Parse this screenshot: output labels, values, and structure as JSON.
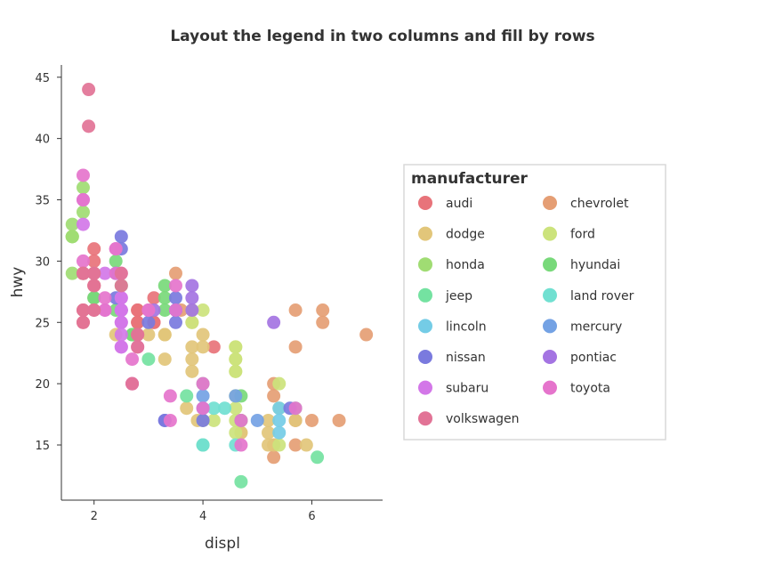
{
  "chart_data": {
    "type": "scatter",
    "title": "Layout the legend in two columns and fill by rows",
    "xlabel": "displ",
    "ylabel": "hwy",
    "xlim": [
      1.4,
      7.3
    ],
    "ylim": [
      10.5,
      46
    ],
    "xticks": [
      2,
      4,
      6
    ],
    "yticks": [
      15,
      20,
      25,
      30,
      35,
      40,
      45
    ],
    "grid": false,
    "legend": {
      "title": "manufacturer",
      "placement": "right",
      "columns": 2,
      "fill": "rows"
    },
    "series": [
      {
        "name": "audi",
        "color": "#e8737a",
        "points": [
          [
            1.8,
            29
          ],
          [
            1.8,
            29
          ],
          [
            2,
            31
          ],
          [
            2,
            30
          ],
          [
            2.8,
            26
          ],
          [
            2.8,
            26
          ],
          [
            3.1,
            27
          ],
          [
            1.8,
            26
          ],
          [
            1.8,
            25
          ],
          [
            2,
            28
          ],
          [
            2,
            27
          ],
          [
            2.8,
            25
          ],
          [
            2.8,
            25
          ],
          [
            3.1,
            25
          ],
          [
            3.1,
            25
          ],
          [
            4.2,
            23
          ],
          [
            1.8,
            29
          ],
          [
            2,
            28
          ]
        ]
      },
      {
        "name": "chevrolet",
        "color": "#e59e74",
        "points": [
          [
            5.7,
            26
          ],
          [
            5.7,
            23
          ],
          [
            6.2,
            26
          ],
          [
            6.2,
            25
          ],
          [
            7,
            24
          ],
          [
            5.3,
            20
          ],
          [
            5.3,
            15
          ],
          [
            5.7,
            17
          ],
          [
            6,
            17
          ],
          [
            6.5,
            17
          ],
          [
            5.3,
            19
          ],
          [
            5.3,
            14
          ],
          [
            5.7,
            15
          ],
          [
            3.5,
            29
          ],
          [
            3.6,
            26
          ]
        ]
      },
      {
        "name": "dodge",
        "color": "#e2c67a",
        "points": [
          [
            2.4,
            24
          ],
          [
            3,
            24
          ],
          [
            3.3,
            22
          ],
          [
            3.3,
            24
          ],
          [
            3.8,
            22
          ],
          [
            3.8,
            23
          ],
          [
            4,
            23
          ],
          [
            3.7,
            18
          ],
          [
            3.9,
            17
          ],
          [
            4.7,
            17
          ],
          [
            4.7,
            16
          ],
          [
            5.2,
            16
          ],
          [
            5.2,
            15
          ],
          [
            5.7,
            17
          ],
          [
            5.9,
            15
          ],
          [
            4.7,
            17
          ],
          [
            5.3,
            15
          ],
          [
            3.8,
            21
          ],
          [
            3.3,
            24
          ],
          [
            3.8,
            26
          ],
          [
            4,
            24
          ],
          [
            3.8,
            25
          ],
          [
            4.7,
            16
          ],
          [
            4.7,
            17
          ],
          [
            5.2,
            17
          ]
        ]
      },
      {
        "name": "ford",
        "color": "#cce37c",
        "points": [
          [
            4,
            17
          ],
          [
            4.6,
            16
          ],
          [
            4.6,
            17
          ],
          [
            5.4,
            15
          ],
          [
            5.4,
            20
          ],
          [
            4.2,
            17
          ],
          [
            4.6,
            21
          ],
          [
            4.6,
            22
          ],
          [
            4.6,
            23
          ],
          [
            4.6,
            19
          ],
          [
            4.6,
            21
          ],
          [
            4.6,
            22
          ],
          [
            4.6,
            23
          ],
          [
            5.4,
            18
          ],
          [
            3.8,
            26
          ],
          [
            3.8,
            25
          ],
          [
            4,
            26
          ],
          [
            4.6,
            18
          ]
        ]
      },
      {
        "name": "honda",
        "color": "#a0dc73",
        "points": [
          [
            1.6,
            33
          ],
          [
            1.6,
            32
          ],
          [
            1.6,
            32
          ],
          [
            1.6,
            29
          ],
          [
            1.6,
            32
          ],
          [
            1.8,
            34
          ],
          [
            1.8,
            36
          ],
          [
            2,
            29
          ],
          [
            1.8,
            29
          ]
        ]
      },
      {
        "name": "hyundai",
        "color": "#78d97a",
        "points": [
          [
            2.4,
            30
          ],
          [
            2.4,
            26
          ],
          [
            2,
            27
          ],
          [
            2,
            27
          ],
          [
            2.5,
            28
          ],
          [
            2.5,
            26
          ],
          [
            2.7,
            24
          ],
          [
            2.7,
            24
          ],
          [
            3.3,
            28
          ],
          [
            3.3,
            27
          ],
          [
            3.3,
            26
          ],
          [
            4.7,
            19
          ]
        ]
      },
      {
        "name": "jeep",
        "color": "#74e2a1",
        "points": [
          [
            3,
            22
          ],
          [
            3.7,
            19
          ],
          [
            4,
            20
          ],
          [
            4.7,
            17
          ],
          [
            4.7,
            12
          ],
          [
            5.7,
            18
          ],
          [
            6.1,
            14
          ],
          [
            4,
            15
          ]
        ]
      },
      {
        "name": "land rover",
        "color": "#71e0d1",
        "points": [
          [
            4,
            15
          ],
          [
            4.2,
            18
          ],
          [
            4.4,
            18
          ],
          [
            4.6,
            15
          ]
        ]
      },
      {
        "name": "lincoln",
        "color": "#74cce6",
        "points": [
          [
            5.4,
            18
          ],
          [
            5.4,
            17
          ],
          [
            5.4,
            16
          ]
        ]
      },
      {
        "name": "mercury",
        "color": "#74a2e4",
        "points": [
          [
            4,
            19
          ],
          [
            4,
            18
          ],
          [
            4.6,
            19
          ],
          [
            5,
            17
          ]
        ]
      },
      {
        "name": "nissan",
        "color": "#7a7ade",
        "points": [
          [
            2.5,
            32
          ],
          [
            2.5,
            31
          ],
          [
            3.5,
            26
          ],
          [
            3.5,
            25
          ],
          [
            3,
            25
          ],
          [
            3.5,
            27
          ],
          [
            3.3,
            17
          ],
          [
            3.3,
            17
          ],
          [
            4,
            17
          ],
          [
            5.6,
            18
          ],
          [
            2.4,
            29
          ],
          [
            2.4,
            27
          ],
          [
            3.5,
            26
          ]
        ]
      },
      {
        "name": "pontiac",
        "color": "#a474e2",
        "points": [
          [
            3.1,
            26
          ],
          [
            3.8,
            27
          ],
          [
            3.8,
            28
          ],
          [
            3.8,
            26
          ],
          [
            5.3,
            25
          ]
        ]
      },
      {
        "name": "subaru",
        "color": "#d377e8",
        "points": [
          [
            2.5,
            26
          ],
          [
            2.5,
            25
          ],
          [
            2.5,
            27
          ],
          [
            2.5,
            26
          ],
          [
            2.5,
            25
          ],
          [
            2.5,
            27
          ],
          [
            2.2,
            26
          ],
          [
            2.2,
            29
          ],
          [
            2.5,
            24
          ],
          [
            2.5,
            23
          ],
          [
            2.5,
            26
          ],
          [
            2.5,
            23
          ],
          [
            1.8,
            33
          ],
          [
            1.8,
            35
          ]
        ]
      },
      {
        "name": "toyota",
        "color": "#e574cc",
        "points": [
          [
            2.7,
            20
          ],
          [
            2.7,
            20
          ],
          [
            3.4,
            19
          ],
          [
            3.4,
            17
          ],
          [
            4,
            20
          ],
          [
            4.7,
            17
          ],
          [
            4.7,
            15
          ],
          [
            2.2,
            26
          ],
          [
            2.2,
            27
          ],
          [
            2.4,
            31
          ],
          [
            2.4,
            31
          ],
          [
            3,
            26
          ],
          [
            3,
            26
          ],
          [
            3.5,
            28
          ],
          [
            1.8,
            35
          ],
          [
            1.8,
            37
          ],
          [
            1.8,
            30
          ],
          [
            2.7,
            22
          ],
          [
            2.8,
            23
          ],
          [
            4,
            18
          ],
          [
            5.7,
            18
          ],
          [
            3.5,
            26
          ],
          [
            2.4,
            29
          ],
          [
            2.5,
            29
          ]
        ]
      },
      {
        "name": "volkswagen",
        "color": "#e27396",
        "points": [
          [
            1.9,
            44
          ],
          [
            1.9,
            41
          ],
          [
            2,
            29
          ],
          [
            2,
            26
          ],
          [
            2.8,
            24
          ],
          [
            1.8,
            29
          ],
          [
            2,
            28
          ],
          [
            2.8,
            23
          ],
          [
            2.8,
            24
          ],
          [
            2.5,
            28
          ],
          [
            2.5,
            29
          ],
          [
            1.8,
            29
          ],
          [
            2,
            26
          ],
          [
            2.7,
            20
          ],
          [
            1.8,
            25
          ],
          [
            1.8,
            26
          ],
          [
            2,
            29
          ]
        ]
      }
    ]
  }
}
